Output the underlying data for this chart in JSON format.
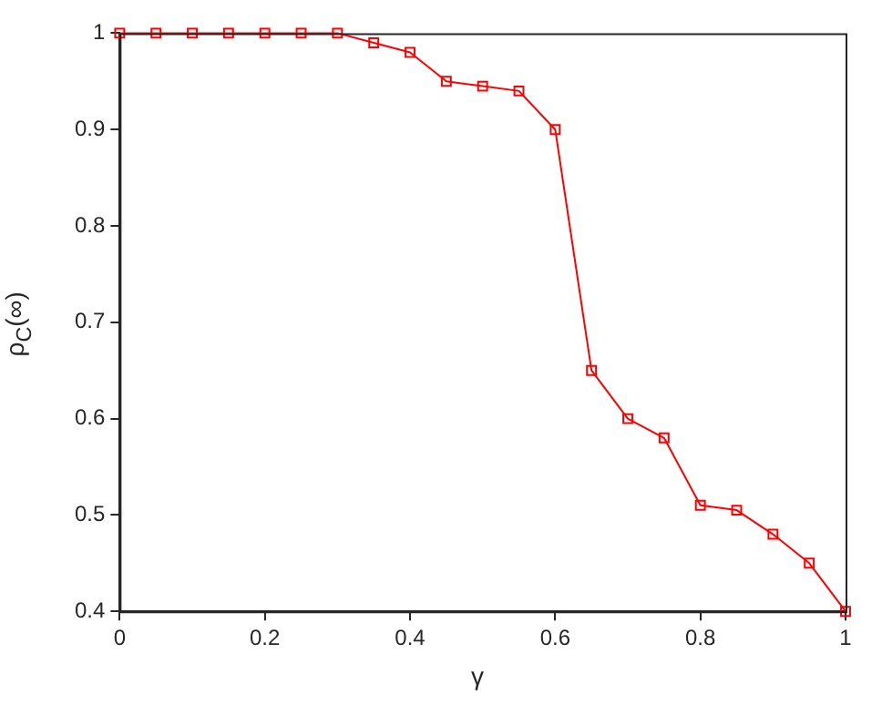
{
  "chart_data": {
    "type": "line",
    "xlabel": "γ",
    "ylabel": "ρ$_{C}$(∞)",
    "x": [
      0,
      0.05,
      0.1,
      0.15,
      0.2,
      0.25,
      0.3,
      0.35,
      0.4,
      0.45,
      0.5,
      0.55,
      0.6,
      0.65,
      0.7,
      0.75,
      0.8,
      0.85,
      0.9,
      0.95,
      1
    ],
    "series": [
      {
        "color": "#ff0000",
        "values": [
          1,
          1,
          1,
          1,
          1,
          1,
          1,
          0.99,
          0.98,
          0.95,
          0.945,
          0.94,
          0.9,
          0.65,
          0.6,
          0.58,
          0.51,
          0.505,
          0.48,
          0.45,
          0.4
        ]
      }
    ],
    "xlim": [
      0,
      1
    ],
    "xticks": [
      0,
      0.2,
      0.4,
      0.6,
      0.8,
      1
    ],
    "ylim": [
      0.4,
      1
    ],
    "yticks": [
      0.4,
      0.5,
      0.6,
      0.7,
      0.8,
      0.9,
      1
    ],
    "marker": "square",
    "line_style": "solid",
    "legend": false
  }
}
